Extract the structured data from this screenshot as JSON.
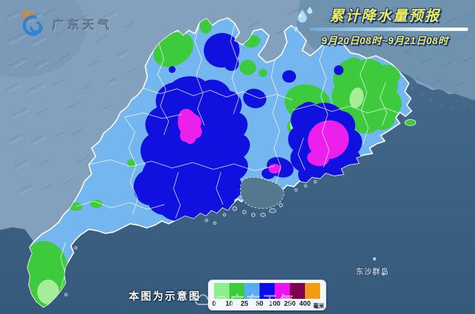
{
  "logo": {
    "text": "广东天气"
  },
  "header": {
    "title": "累计降水量预报",
    "date_range": "9月20日08时~9月21日08时"
  },
  "map": {
    "note": "本图为示意图",
    "watermark": "@广东天气",
    "island_label": "东沙群岛"
  },
  "legend": {
    "ticks": [
      "0",
      "10",
      "25",
      "50",
      "100",
      "250",
      "400"
    ],
    "unit": "毫米",
    "colors": [
      "#8dee8d",
      "#3ccc3c",
      "#58acf4",
      "#0a0ae8",
      "#ee12ee",
      "#7c0350",
      "#f29c14"
    ]
  },
  "colors": {
    "sea": "#3e6486",
    "terrain_outside": "#82a0bc",
    "province_base": "#74b7f0",
    "rain_0_10": "#a5ee97",
    "rain_10_25": "#3dcb3d",
    "rain_50_100_base": "#74b7f0",
    "rain_100_250": "#1111df",
    "rain_250_400": "#ed1fed",
    "title_text": "#e9f157"
  }
}
